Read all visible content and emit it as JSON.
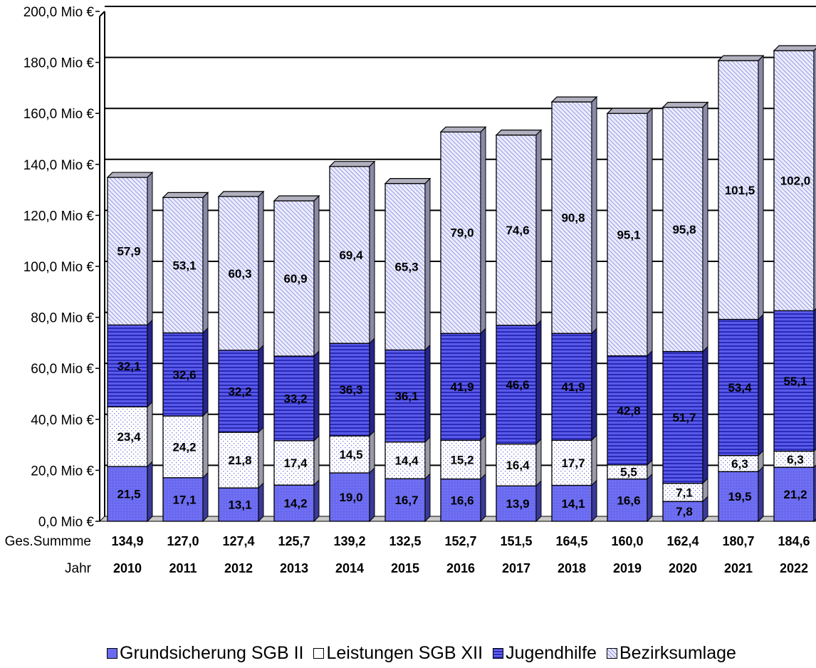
{
  "chart_data": {
    "type": "bar",
    "stacked": true,
    "title": "",
    "xlabel": "",
    "ylabel": "",
    "ylim": [
      0,
      200
    ],
    "yticks": [
      "0,0 Mio €",
      "20,0 Mio €",
      "40,0 Mio €",
      "60,0 Mio €",
      "80,0 Mio €",
      "100,0 Mio €",
      "120,0 Mio €",
      "140,0 Mio €",
      "160,0 Mio €",
      "180,0 Mio €",
      "200,0 Mio €"
    ],
    "grid": true,
    "legend_position": "bottom",
    "categories": [
      "2010",
      "2011",
      "2012",
      "2013",
      "2014",
      "2015",
      "2016",
      "2017",
      "2018",
      "2019",
      "2020",
      "2021",
      "2022"
    ],
    "series": [
      {
        "name": "Grundsicherung SGB II",
        "values": [
          21.5,
          17.1,
          13.1,
          14.2,
          19.0,
          16.7,
          16.6,
          13.9,
          14.1,
          16.6,
          7.8,
          19.5,
          21.2
        ],
        "labels": [
          "21,5",
          "17,1",
          "13,1",
          "14,2",
          "19,0",
          "16,7",
          "16,6",
          "13,9",
          "14,1",
          "16,6",
          "7,8",
          "19,5",
          "21,2"
        ],
        "color": "#6666ee"
      },
      {
        "name": "Leistungen SGB XII",
        "values": [
          23.4,
          24.2,
          21.8,
          17.4,
          14.5,
          14.4,
          15.2,
          16.4,
          17.7,
          5.5,
          7.1,
          6.3,
          6.3
        ],
        "labels": [
          "23,4",
          "24,2",
          "21,8",
          "17,4",
          "14,5",
          "14,4",
          "15,2",
          "16,4",
          "17,7",
          "5,5",
          "7,1",
          "6,3",
          "6,3"
        ],
        "color": "#ffffff"
      },
      {
        "name": "Jugendhilfe",
        "values": [
          32.1,
          32.6,
          32.2,
          33.2,
          36.3,
          36.1,
          41.9,
          46.6,
          41.9,
          42.8,
          51.7,
          53.4,
          55.1
        ],
        "labels": [
          "32,1",
          "32,6",
          "32,2",
          "33,2",
          "36,3",
          "36,1",
          "41,9",
          "46,6",
          "41,9",
          "42,8",
          "51,7",
          "53,4",
          "55,1"
        ],
        "color": "#4a4ae0"
      },
      {
        "name": "Bezirksumlage",
        "values": [
          57.9,
          53.1,
          60.3,
          60.9,
          69.4,
          65.3,
          79.0,
          74.6,
          90.8,
          95.1,
          95.8,
          101.5,
          102.0
        ],
        "labels": [
          "57,9",
          "53,1",
          "60,3",
          "60,9",
          "69,4",
          "65,3",
          "79,0",
          "74,6",
          "90,8",
          "95,1",
          "95,8",
          "101,5",
          "102,0"
        ],
        "color": "#d8daf6"
      }
    ],
    "rows": [
      {
        "label": "Ges.Summme",
        "values": [
          "134,9",
          "127,0",
          "127,4",
          "125,7",
          "139,2",
          "132,5",
          "152,7",
          "151,5",
          "164,5",
          "160,0",
          "162,4",
          "180,7",
          "184,6"
        ]
      },
      {
        "label": "Jahr",
        "values": [
          "2010",
          "2011",
          "2012",
          "2013",
          "2014",
          "2015",
          "2016",
          "2017",
          "2018",
          "2019",
          "2020",
          "2021",
          "2022"
        ]
      }
    ]
  }
}
